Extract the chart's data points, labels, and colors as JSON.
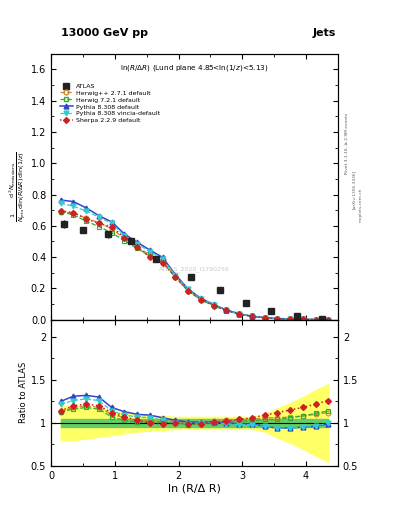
{
  "title_top": "13000 GeV pp",
  "title_right": "Jets",
  "panel_title": "ln(R/Δ R) (Lund plane 4.85<ln(1/z)<5.13)",
  "watermark": "ATLAS_2020_I1790256",
  "rivet_label": "Rivet 3.1.10, ≥ 2.9M events",
  "arxiv_label": "[arXiv:1306.3436]",
  "mcplots_label": "mcplots.cern.ch",
  "xlabel": "ln (R/Δ R)",
  "ylabel_ratio": "Ratio to ATLAS",
  "xlim": [
    0,
    4.5
  ],
  "ylim_main": [
    0,
    1.7
  ],
  "ylim_ratio": [
    0.5,
    2.2
  ],
  "yticks_main": [
    0.0,
    0.2,
    0.4,
    0.6,
    0.8,
    1.0,
    1.2,
    1.4,
    1.6
  ],
  "yticks_ratio": [
    0.5,
    1.0,
    1.5,
    2.0
  ],
  "xticks": [
    0,
    1,
    2,
    3,
    4
  ],
  "color_herwig_pp": "#cc8833",
  "color_herwig72": "#33aa33",
  "color_pythia": "#3344cc",
  "color_pythia_vincia": "#33cccc",
  "color_sherpa": "#cc2222",
  "atlas_x": [
    0.2,
    0.5,
    0.9,
    1.25,
    1.65,
    2.2,
    2.65,
    3.05,
    3.45,
    3.85,
    4.25
  ],
  "atlas_y": [
    0.61,
    0.575,
    0.545,
    0.5,
    0.39,
    0.27,
    0.19,
    0.105,
    0.055,
    0.025,
    0.006
  ],
  "atlas_yerr": [
    0.025,
    0.02,
    0.02,
    0.018,
    0.015,
    0.012,
    0.01,
    0.006,
    0.004,
    0.003,
    0.002
  ],
  "mc_x": [
    0.15,
    0.35,
    0.55,
    0.75,
    0.95,
    1.15,
    1.35,
    1.55,
    1.75,
    1.95,
    2.15,
    2.35,
    2.55,
    2.75,
    2.95,
    3.15,
    3.35,
    3.55,
    3.75,
    3.95,
    4.15,
    4.35
  ],
  "herwig_pp_y": [
    0.69,
    0.68,
    0.65,
    0.62,
    0.58,
    0.52,
    0.465,
    0.415,
    0.375,
    0.275,
    0.185,
    0.13,
    0.092,
    0.06,
    0.037,
    0.021,
    0.013,
    0.007,
    0.004,
    0.0018,
    0.0009,
    0.0004
  ],
  "herwig72_y": [
    0.69,
    0.67,
    0.63,
    0.595,
    0.555,
    0.505,
    0.455,
    0.405,
    0.365,
    0.27,
    0.183,
    0.127,
    0.088,
    0.057,
    0.035,
    0.02,
    0.012,
    0.007,
    0.004,
    0.0017,
    0.0009,
    0.0004
  ],
  "pythia_y": [
    0.765,
    0.755,
    0.715,
    0.665,
    0.625,
    0.548,
    0.495,
    0.445,
    0.398,
    0.288,
    0.196,
    0.136,
    0.097,
    0.062,
    0.038,
    0.022,
    0.013,
    0.007,
    0.004,
    0.0018,
    0.0009,
    0.0004
  ],
  "pythia_v_y": [
    0.745,
    0.725,
    0.695,
    0.655,
    0.615,
    0.538,
    0.485,
    0.435,
    0.39,
    0.282,
    0.193,
    0.133,
    0.095,
    0.061,
    0.037,
    0.021,
    0.013,
    0.007,
    0.004,
    0.0018,
    0.0009,
    0.0004
  ],
  "sherpa_y": [
    0.695,
    0.685,
    0.645,
    0.615,
    0.595,
    0.525,
    0.465,
    0.4,
    0.365,
    0.272,
    0.185,
    0.128,
    0.09,
    0.059,
    0.036,
    0.021,
    0.013,
    0.007,
    0.004,
    0.0019,
    0.001,
    0.0005
  ],
  "yb_lo": [
    0.8,
    0.8,
    0.82,
    0.84,
    0.86,
    0.88,
    0.9,
    0.91,
    0.92,
    0.93,
    0.93,
    0.93,
    0.93,
    0.93,
    0.93,
    0.93,
    0.9,
    0.83,
    0.77,
    0.7,
    0.62,
    0.55
  ],
  "yb_hi": [
    1.2,
    1.2,
    1.18,
    1.16,
    1.14,
    1.12,
    1.1,
    1.09,
    1.08,
    1.07,
    1.07,
    1.07,
    1.07,
    1.07,
    1.07,
    1.07,
    1.1,
    1.17,
    1.23,
    1.3,
    1.38,
    1.45
  ],
  "gb_lo": 0.95,
  "gb_hi": 1.05,
  "ratio_herwig_pp": [
    1.13,
    1.18,
    1.2,
    1.18,
    1.1,
    1.06,
    1.03,
    1.03,
    1.04,
    1.02,
    1.0,
    1.01,
    1.02,
    1.03,
    1.04,
    1.04,
    1.06,
    1.06,
    1.07,
    1.08,
    1.1,
    1.12
  ],
  "ratio_herwig72": [
    1.13,
    1.16,
    1.18,
    1.16,
    1.07,
    1.03,
    1.01,
    1.01,
    1.01,
    1.0,
    0.98,
    0.99,
    1.0,
    1.01,
    1.02,
    1.02,
    1.04,
    1.04,
    1.06,
    1.08,
    1.11,
    1.14
  ],
  "ratio_pythia": [
    1.25,
    1.31,
    1.32,
    1.3,
    1.18,
    1.13,
    1.1,
    1.09,
    1.06,
    1.03,
    1.01,
    1.01,
    1.01,
    1.0,
    0.99,
    0.99,
    0.96,
    0.94,
    0.94,
    0.95,
    0.96,
    0.99
  ],
  "ratio_pythia_v": [
    1.22,
    1.26,
    1.28,
    1.26,
    1.14,
    1.09,
    1.07,
    1.06,
    1.03,
    1.0,
    0.99,
    1.0,
    1.0,
    0.99,
    0.98,
    0.98,
    0.96,
    0.94,
    0.94,
    0.95,
    0.96,
    1.0
  ],
  "ratio_sherpa": [
    1.14,
    1.2,
    1.22,
    1.2,
    1.12,
    1.07,
    1.03,
    1.0,
    0.99,
    1.0,
    0.99,
    0.99,
    1.01,
    1.02,
    1.04,
    1.06,
    1.09,
    1.12,
    1.15,
    1.18,
    1.22,
    1.26
  ]
}
